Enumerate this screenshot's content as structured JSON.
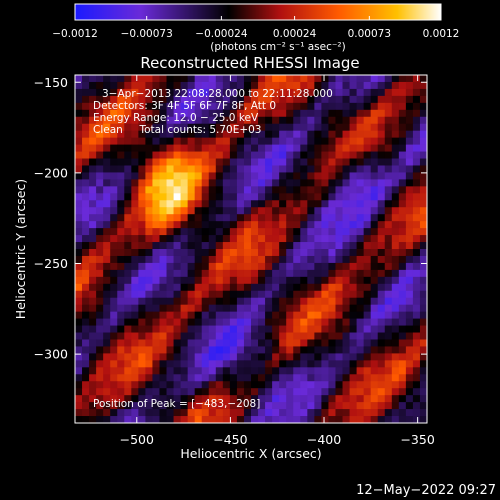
{
  "chart_data": {
    "type": "heatmap",
    "title": "Reconstructed RHESSI Image",
    "xlabel": "Heliocentric X (arcsec)",
    "ylabel": "Heliocentric Y (arcsec)",
    "xlim": [
      -533,
      -345
    ],
    "ylim": [
      -338,
      -146
    ],
    "xticks": [
      -500,
      -450,
      -400,
      -350
    ],
    "yticks": [
      -150,
      -200,
      -250,
      -300
    ],
    "xtick_labels": [
      "−500",
      "−450",
      "−400",
      "−350"
    ],
    "ytick_labels": [
      "−150",
      "−200",
      "−250",
      "−300"
    ],
    "colorbar": {
      "range": [
        -0.0012,
        0.0012
      ],
      "ticks": [
        -0.0012,
        -0.00073,
        -0.00024,
        0.00024,
        0.00073,
        0.0012
      ],
      "tick_labels": [
        "−0.0012",
        "−0.00073",
        "−0.00024",
        "0.00024",
        "0.00073",
        "0.0012"
      ],
      "unit_label": "(photons cm⁻² s⁻¹ asec⁻²)",
      "colors": [
        "#1a1aff",
        "#6a2ad8",
        "#000000",
        "#b01010",
        "#ff5a00",
        "#ffc000",
        "#ffffff"
      ]
    },
    "annotations": [
      "3−Apr−2013 22:08:28.000 to 22:11:28.000",
      "Detectors: 3F 4F 5F 6F 7F 8F, Att 0",
      "Energy Range: 12.0 − 25.0 keV",
      "Clean     Total counts: 5.70E+03"
    ],
    "peak_label": "Position of Peak = [−483,−208]",
    "peak": [
      -483,
      -208
    ],
    "grid": false,
    "legend": "none",
    "image_cols": 50,
    "image_rows": 50
  },
  "footer": {
    "timestamp": "12−May−2022 09:27"
  }
}
